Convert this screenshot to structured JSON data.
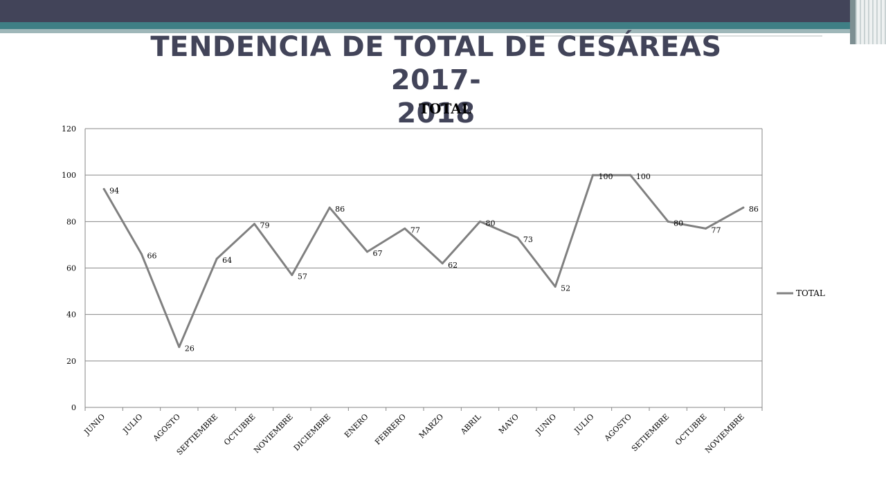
{
  "slide": {
    "title_line1": "TENDENCIA DE TOTAL DE CESÁREAS 2017-",
    "title_line2": "2018"
  },
  "colors": {
    "header_dark": "#424459",
    "header_teal": "#3f7f85",
    "series_line": "#808080",
    "gridline": "#868686"
  },
  "chart_data": {
    "type": "line",
    "title": "TOTAL",
    "categories": [
      "JUNIO",
      "JULIO",
      "AGOSTO",
      "SEPTIEMBRE",
      "OCTUBRE",
      "NOVIEMBRE",
      "DICIEMBRE",
      "ENERO",
      "FEBRERO",
      "MARZO",
      "ABRIL",
      "MAYO",
      "JUNIO",
      "JULIO",
      "AGOSTO",
      "SETIEMBRE",
      "OCTUBRE",
      "NOVIEMBRE"
    ],
    "series": [
      {
        "name": "TOTAL",
        "values": [
          94,
          66,
          26,
          64,
          79,
          57,
          86,
          67,
          77,
          62,
          80,
          73,
          52,
          100,
          100,
          80,
          77,
          86
        ]
      }
    ],
    "ylim": [
      0,
      120
    ],
    "yticks": [
      0,
      20,
      40,
      60,
      80,
      100,
      120
    ],
    "grid": true,
    "legend": "right",
    "data_labels": true
  }
}
